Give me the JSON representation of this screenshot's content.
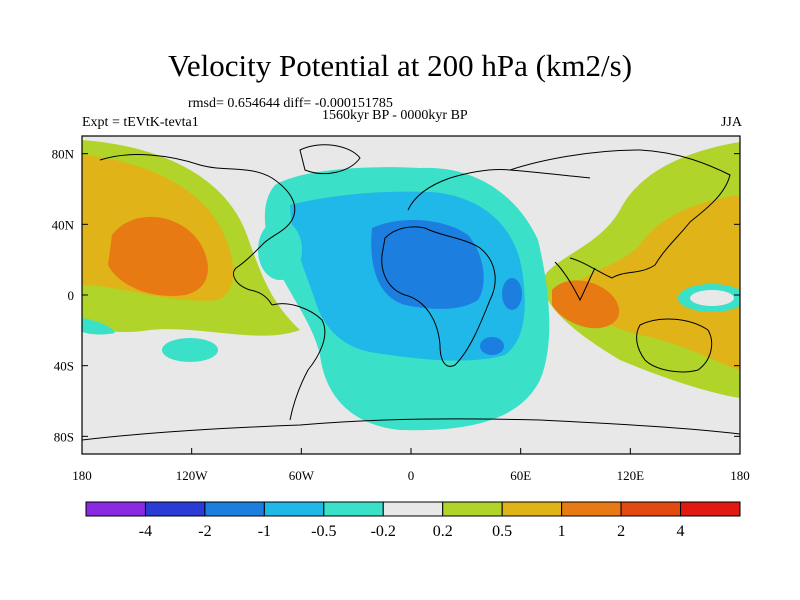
{
  "chart_data": {
    "type": "heatmap",
    "title": "Velocity Potential at 200 hPa (km2/s)",
    "stats_text": "rmsd= 0.654644 diff= -0.000151785",
    "period": "1560kyr BP - 0000kyr BP",
    "left_label": "Expt = tEVtK-tevta1",
    "right_label": "JJA",
    "x_ticks": [
      "180",
      "120W",
      "60W",
      "0",
      "60E",
      "120E",
      "180"
    ],
    "y_ticks": [
      "80N",
      "40N",
      "0",
      "40S",
      "80S"
    ],
    "x_range": [
      -180,
      180
    ],
    "y_range": [
      -90,
      90
    ],
    "colorbar": {
      "levels": [
        "-4",
        "-2",
        "-1",
        "-0.5",
        "-0.2",
        "0.2",
        "0.5",
        "1",
        "2",
        "4"
      ],
      "colors": [
        "#8a2be2",
        "#2a3bd6",
        "#1c7fe0",
        "#20b8e8",
        "#3ae0c8",
        "#e8e8e8",
        "#b0d42a",
        "#e0b418",
        "#e87a14",
        "#e24a10",
        "#e01a10"
      ]
    }
  }
}
